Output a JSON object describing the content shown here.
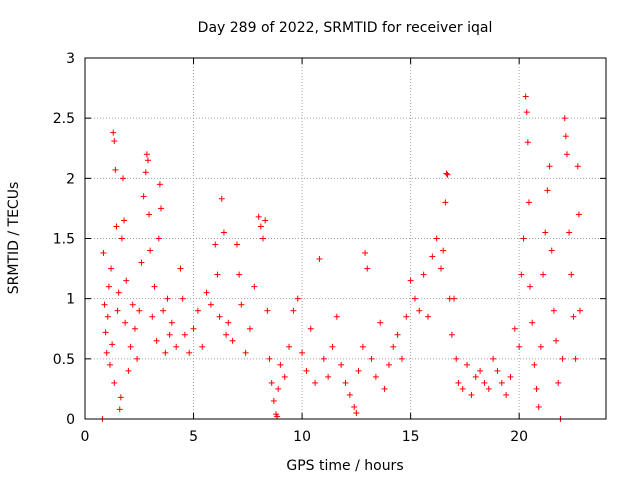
{
  "chart_data": {
    "type": "scatter",
    "title": "Day 289 of 2022, SRMTID for receiver iqal",
    "xlabel": "GPS time / hours",
    "ylabel": "SRMTID / TECUs",
    "xlim": [
      0,
      24
    ],
    "ylim": [
      0,
      3
    ],
    "xticks": [
      0,
      5,
      10,
      15,
      20
    ],
    "yticks": [
      0,
      0.5,
      1,
      1.5,
      2,
      2.5,
      3
    ],
    "xtick_labels": [
      "0",
      "5",
      "10",
      "15",
      "20"
    ],
    "ytick_labels": [
      "0",
      "0.5",
      "1",
      "1.5",
      "2",
      "2.5",
      "3"
    ],
    "grid": true,
    "marker": "+",
    "color": "#ff0000",
    "series": [
      {
        "name": "SRMTID",
        "points": [
          [
            0.8,
            0.0
          ],
          [
            0.85,
            1.38
          ],
          [
            0.9,
            0.95
          ],
          [
            0.95,
            0.72
          ],
          [
            1.0,
            0.55
          ],
          [
            1.05,
            0.85
          ],
          [
            1.1,
            1.1
          ],
          [
            1.15,
            0.45
          ],
          [
            1.2,
            1.25
          ],
          [
            1.25,
            0.62
          ],
          [
            1.3,
            2.38
          ],
          [
            1.35,
            2.31
          ],
          [
            1.35,
            0.3
          ],
          [
            1.4,
            2.07
          ],
          [
            1.45,
            1.6
          ],
          [
            1.5,
            0.9
          ],
          [
            1.55,
            1.05
          ],
          [
            1.6,
            0.08
          ],
          [
            1.65,
            0.18
          ],
          [
            1.7,
            1.5
          ],
          [
            1.75,
            2.0
          ],
          [
            1.8,
            1.65
          ],
          [
            1.85,
            0.8
          ],
          [
            1.9,
            1.15
          ],
          [
            2.0,
            0.4
          ],
          [
            2.1,
            0.6
          ],
          [
            2.2,
            0.95
          ],
          [
            2.3,
            0.75
          ],
          [
            2.4,
            0.5
          ],
          [
            2.5,
            0.9
          ],
          [
            2.6,
            1.3
          ],
          [
            2.7,
            1.85
          ],
          [
            2.8,
            2.05
          ],
          [
            2.85,
            2.2
          ],
          [
            2.9,
            2.15
          ],
          [
            2.95,
            1.7
          ],
          [
            3.0,
            1.4
          ],
          [
            3.1,
            0.85
          ],
          [
            3.2,
            1.1
          ],
          [
            3.3,
            0.65
          ],
          [
            3.4,
            1.5
          ],
          [
            3.45,
            1.95
          ],
          [
            3.5,
            1.75
          ],
          [
            3.6,
            0.9
          ],
          [
            3.7,
            0.55
          ],
          [
            3.8,
            1.0
          ],
          [
            3.9,
            0.7
          ],
          [
            4.0,
            0.8
          ],
          [
            4.2,
            0.6
          ],
          [
            4.4,
            1.25
          ],
          [
            4.5,
            1.0
          ],
          [
            4.6,
            0.7
          ],
          [
            4.8,
            0.55
          ],
          [
            5.0,
            0.75
          ],
          [
            5.2,
            0.9
          ],
          [
            5.4,
            0.6
          ],
          [
            5.6,
            1.05
          ],
          [
            5.8,
            0.95
          ],
          [
            6.0,
            1.45
          ],
          [
            6.1,
            1.2
          ],
          [
            6.2,
            0.85
          ],
          [
            6.3,
            1.83
          ],
          [
            6.4,
            1.55
          ],
          [
            6.5,
            0.7
          ],
          [
            6.6,
            0.8
          ],
          [
            6.8,
            0.65
          ],
          [
            7.0,
            1.45
          ],
          [
            7.1,
            1.2
          ],
          [
            7.2,
            0.95
          ],
          [
            7.4,
            0.55
          ],
          [
            7.6,
            0.75
          ],
          [
            7.8,
            1.1
          ],
          [
            8.0,
            1.68
          ],
          [
            8.1,
            1.6
          ],
          [
            8.2,
            1.5
          ],
          [
            8.3,
            1.65
          ],
          [
            8.4,
            0.9
          ],
          [
            8.5,
            0.5
          ],
          [
            8.6,
            0.3
          ],
          [
            8.7,
            0.15
          ],
          [
            8.8,
            0.04
          ],
          [
            8.85,
            0.02
          ],
          [
            8.9,
            0.25
          ],
          [
            9.0,
            0.45
          ],
          [
            9.2,
            0.35
          ],
          [
            9.4,
            0.6
          ],
          [
            9.6,
            0.9
          ],
          [
            9.8,
            1.0
          ],
          [
            10.0,
            0.55
          ],
          [
            10.2,
            0.4
          ],
          [
            10.4,
            0.75
          ],
          [
            10.6,
            0.3
          ],
          [
            10.8,
            1.33
          ],
          [
            11.0,
            0.5
          ],
          [
            11.2,
            0.35
          ],
          [
            11.4,
            0.6
          ],
          [
            11.6,
            0.85
          ],
          [
            11.8,
            0.45
          ],
          [
            12.0,
            0.3
          ],
          [
            12.2,
            0.2
          ],
          [
            12.4,
            0.1
          ],
          [
            12.5,
            0.05
          ],
          [
            12.6,
            0.4
          ],
          [
            12.8,
            0.6
          ],
          [
            12.9,
            1.38
          ],
          [
            13.0,
            1.25
          ],
          [
            13.2,
            0.5
          ],
          [
            13.4,
            0.35
          ],
          [
            13.6,
            0.8
          ],
          [
            13.8,
            0.25
          ],
          [
            14.0,
            0.45
          ],
          [
            14.2,
            0.6
          ],
          [
            14.4,
            0.7
          ],
          [
            14.6,
            0.5
          ],
          [
            14.8,
            0.85
          ],
          [
            15.0,
            1.15
          ],
          [
            15.2,
            1.0
          ],
          [
            15.4,
            0.9
          ],
          [
            15.6,
            1.2
          ],
          [
            15.8,
            0.85
          ],
          [
            16.0,
            1.35
          ],
          [
            16.2,
            1.5
          ],
          [
            16.4,
            1.25
          ],
          [
            16.5,
            1.4
          ],
          [
            16.6,
            1.8
          ],
          [
            16.65,
            2.04
          ],
          [
            16.7,
            2.03
          ],
          [
            16.8,
            1.0
          ],
          [
            16.9,
            0.7
          ],
          [
            17.0,
            1.0
          ],
          [
            17.1,
            0.5
          ],
          [
            17.2,
            0.3
          ],
          [
            17.4,
            0.25
          ],
          [
            17.6,
            0.45
          ],
          [
            17.8,
            0.2
          ],
          [
            18.0,
            0.35
          ],
          [
            18.2,
            0.4
          ],
          [
            18.4,
            0.3
          ],
          [
            18.6,
            0.25
          ],
          [
            18.8,
            0.5
          ],
          [
            19.0,
            0.4
          ],
          [
            19.2,
            0.3
          ],
          [
            19.4,
            0.2
          ],
          [
            19.6,
            0.35
          ],
          [
            19.8,
            0.75
          ],
          [
            20.0,
            0.6
          ],
          [
            20.1,
            1.2
          ],
          [
            20.2,
            1.5
          ],
          [
            20.3,
            2.68
          ],
          [
            20.35,
            2.55
          ],
          [
            20.4,
            2.3
          ],
          [
            20.45,
            1.8
          ],
          [
            20.5,
            1.1
          ],
          [
            20.6,
            0.8
          ],
          [
            20.7,
            0.45
          ],
          [
            20.8,
            0.25
          ],
          [
            20.9,
            0.1
          ],
          [
            21.0,
            0.6
          ],
          [
            21.1,
            1.2
          ],
          [
            21.2,
            1.55
          ],
          [
            21.3,
            1.9
          ],
          [
            21.4,
            2.1
          ],
          [
            21.5,
            1.4
          ],
          [
            21.6,
            0.9
          ],
          [
            21.7,
            0.65
          ],
          [
            21.8,
            0.3
          ],
          [
            21.9,
            0.0
          ],
          [
            22.0,
            0.5
          ],
          [
            22.1,
            2.5
          ],
          [
            22.15,
            2.35
          ],
          [
            22.2,
            2.2
          ],
          [
            22.3,
            1.55
          ],
          [
            22.4,
            1.2
          ],
          [
            22.5,
            0.85
          ],
          [
            22.6,
            0.5
          ],
          [
            22.7,
            2.1
          ],
          [
            22.75,
            1.7
          ],
          [
            22.8,
            0.9
          ]
        ]
      }
    ]
  }
}
